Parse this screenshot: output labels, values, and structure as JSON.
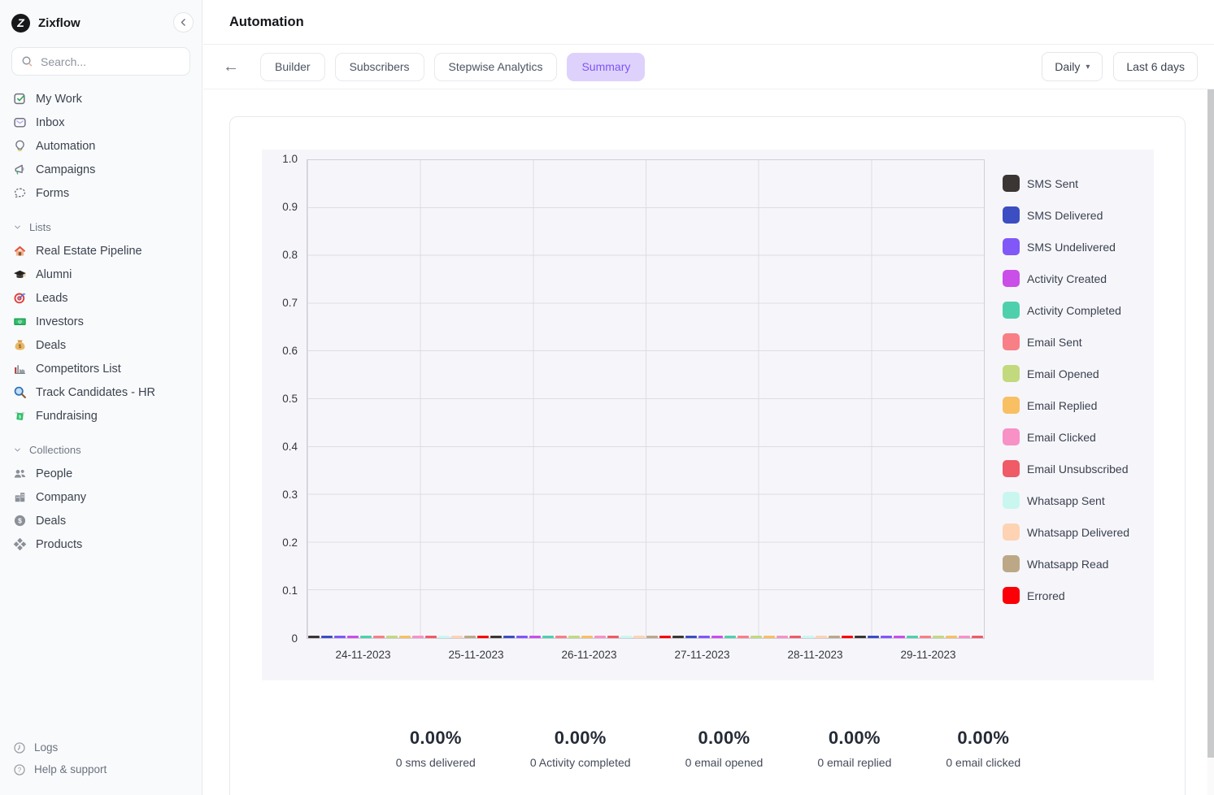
{
  "app": {
    "name": "Zixflow",
    "logo_letter": "Z"
  },
  "sidebar": {
    "search_placeholder": "Search...",
    "nav": [
      {
        "label": "My Work",
        "icon": "my-work-icon"
      },
      {
        "label": "Inbox",
        "icon": "inbox-icon"
      },
      {
        "label": "Automation",
        "icon": "automation-icon"
      },
      {
        "label": "Campaigns",
        "icon": "campaigns-icon"
      },
      {
        "label": "Forms",
        "icon": "forms-icon"
      }
    ],
    "sections": [
      {
        "label": "Lists",
        "items": [
          {
            "label": "Real Estate Pipeline",
            "icon": "house-icon"
          },
          {
            "label": "Alumni",
            "icon": "graduation-cap-icon"
          },
          {
            "label": "Leads",
            "icon": "target-icon"
          },
          {
            "label": "Investors",
            "icon": "money-bills-icon"
          },
          {
            "label": "Deals",
            "icon": "money-bag-icon"
          },
          {
            "label": "Competitors List",
            "icon": "factory-icon"
          },
          {
            "label": "Track Candidates - HR",
            "icon": "magnifier-icon"
          },
          {
            "label": "Fundraising",
            "icon": "money-wings-icon"
          }
        ]
      },
      {
        "label": "Collections",
        "items": [
          {
            "label": "People",
            "icon": "people-icon"
          },
          {
            "label": "Company",
            "icon": "company-icon"
          },
          {
            "label": "Deals",
            "icon": "dollar-circle-icon"
          },
          {
            "label": "Products",
            "icon": "products-icon"
          }
        ]
      }
    ],
    "footer": [
      {
        "label": "Logs",
        "icon": "logs-icon"
      },
      {
        "label": "Help & support",
        "icon": "help-icon"
      }
    ]
  },
  "header": {
    "title": "Automation"
  },
  "toolbar": {
    "tabs": [
      "Builder",
      "Subscribers",
      "Stepwise Analytics",
      "Summary"
    ],
    "active_tab": "Summary",
    "period_dropdown": "Daily",
    "range_button": "Last 6 days"
  },
  "chart_data": {
    "type": "line",
    "title": "",
    "x": [
      "24-11-2023",
      "25-11-2023",
      "26-11-2023",
      "27-11-2023",
      "28-11-2023",
      "29-11-2023"
    ],
    "ylim": [
      0,
      1.0
    ],
    "yticks": [
      "1.0",
      "0.9",
      "0.8",
      "0.7",
      "0.6",
      "0.5",
      "0.4",
      "0.3",
      "0.2",
      "0.1",
      "0"
    ],
    "grid": true,
    "legend_position": "right",
    "series": [
      {
        "name": "SMS Sent",
        "color": "#3b3634",
        "dotted": true,
        "values": [
          0,
          0,
          0,
          0,
          0,
          0
        ]
      },
      {
        "name": "SMS Delivered",
        "color": "#3c4ec1",
        "dotted": false,
        "values": [
          0,
          0,
          0,
          0,
          0,
          0
        ]
      },
      {
        "name": "SMS Undelivered",
        "color": "#8157f8",
        "dotted": false,
        "values": [
          0,
          0,
          0,
          0,
          0,
          0
        ]
      },
      {
        "name": "Activity Created",
        "color": "#c94fe8",
        "dotted": false,
        "values": [
          0,
          0,
          0,
          0,
          0,
          0
        ]
      },
      {
        "name": "Activity Completed",
        "color": "#4fd0ad",
        "dotted": false,
        "values": [
          0,
          0,
          0,
          0,
          0,
          0
        ]
      },
      {
        "name": "Email Sent",
        "color": "#f87f86",
        "dotted": true,
        "values": [
          0,
          0,
          0,
          0,
          0,
          0
        ]
      },
      {
        "name": "Email Opened",
        "color": "#c3d97e",
        "dotted": false,
        "values": [
          0,
          0,
          0,
          0,
          0,
          0
        ]
      },
      {
        "name": "Email Replied",
        "color": "#f8c063",
        "dotted": false,
        "values": [
          0,
          0,
          0,
          0,
          0,
          0
        ]
      },
      {
        "name": "Email Clicked",
        "color": "#f791c6",
        "dotted": false,
        "values": [
          0,
          0,
          0,
          0,
          0,
          0
        ]
      },
      {
        "name": "Email Unsubscribed",
        "color": "#ef5b66",
        "dotted": true,
        "values": [
          0,
          0,
          0,
          0,
          0,
          0
        ]
      },
      {
        "name": "Whatsapp Sent",
        "color": "#c9f7ef",
        "dotted": true,
        "values": [
          0,
          0,
          0,
          0,
          0,
          0
        ]
      },
      {
        "name": "Whatsapp Delivered",
        "color": "#fdd3b4",
        "dotted": false,
        "values": [
          0,
          0,
          0,
          0,
          0,
          0
        ]
      },
      {
        "name": "Whatsapp Read",
        "color": "#bca887",
        "dotted": false,
        "values": [
          0,
          0,
          0,
          0,
          0,
          0
        ]
      },
      {
        "name": "Errored",
        "color": "#fb0007",
        "dotted": false,
        "values": [
          0,
          0,
          0,
          0,
          0,
          0
        ]
      }
    ]
  },
  "stats": [
    {
      "value": "0.00%",
      "label": "0 sms delivered"
    },
    {
      "value": "0.00%",
      "label": "0 Activity completed"
    },
    {
      "value": "0.00%",
      "label": "0 email opened"
    },
    {
      "value": "0.00%",
      "label": "0 email replied"
    },
    {
      "value": "0.00%",
      "label": "0 email clicked"
    }
  ],
  "colors": {
    "accent": "#7d55f6",
    "accent_bg": "#ded2fc",
    "chart_bg": "#f6f6fa",
    "sidebar_bg": "#f9fafb"
  }
}
